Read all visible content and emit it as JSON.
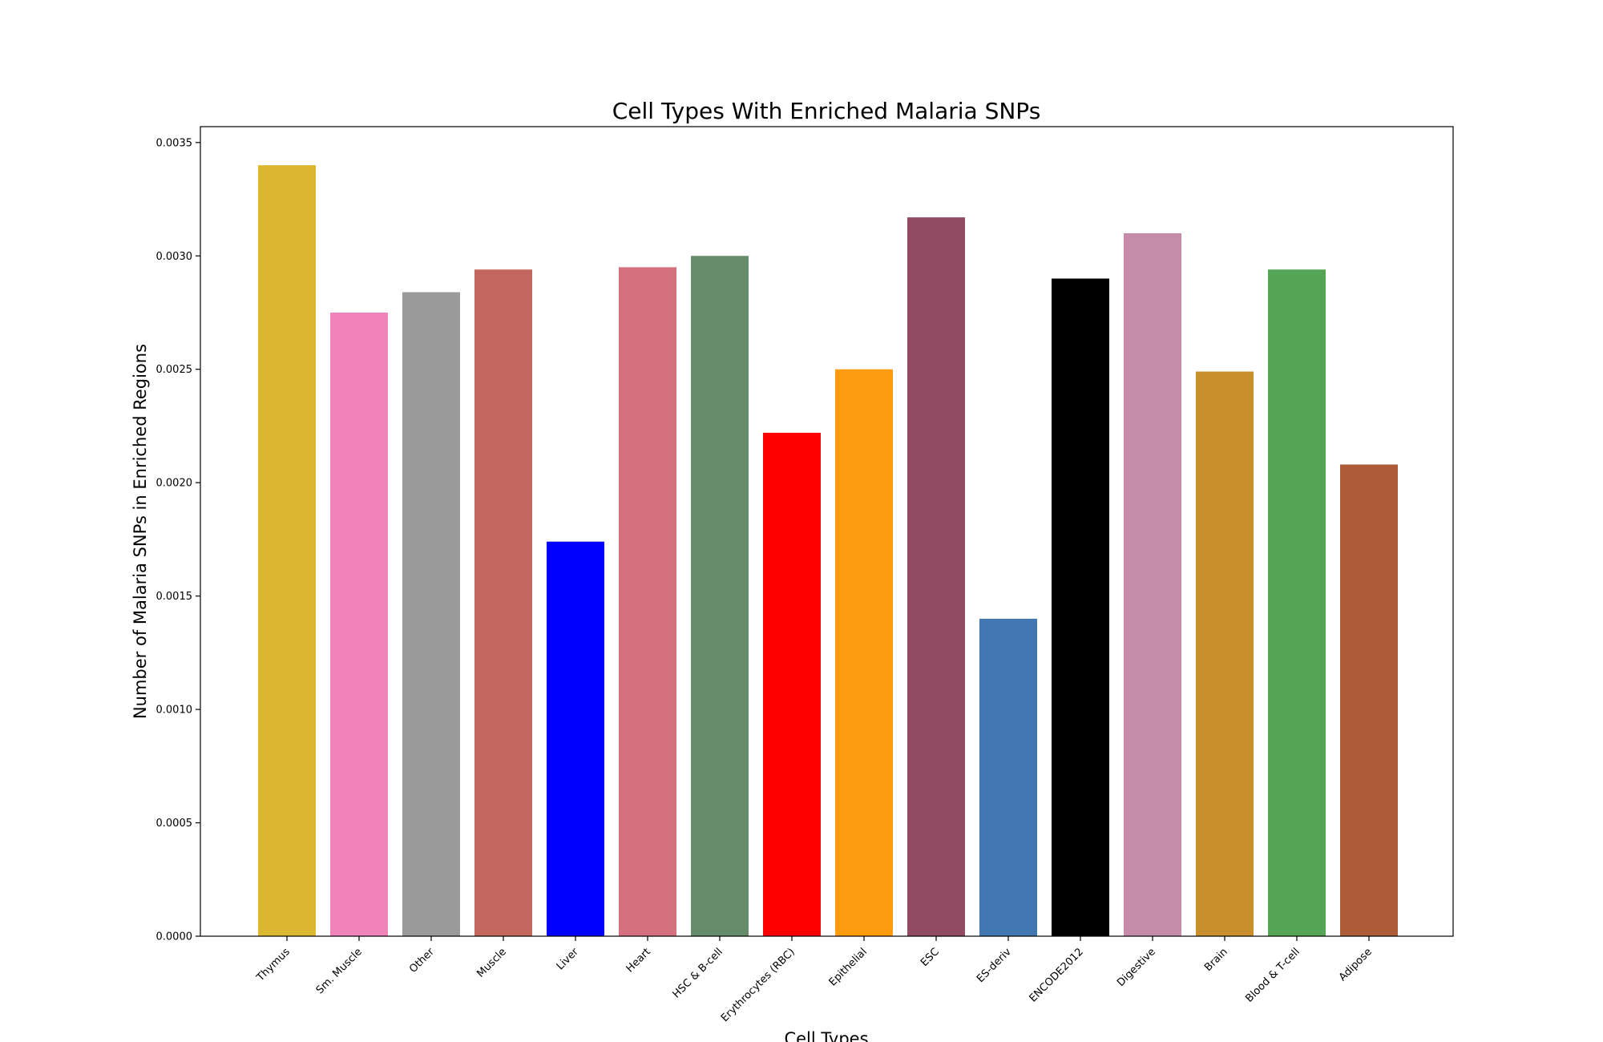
{
  "chart_data": {
    "type": "bar",
    "title": "Cell Types With Enriched Malaria SNPs",
    "xlabel": "Cell Types",
    "ylabel": "Number of Malaria SNPs in Enriched Regions",
    "ylim": [
      0,
      0.00357
    ],
    "yticks": [
      "0.0000",
      "0.0005",
      "0.0010",
      "0.0015",
      "0.0020",
      "0.0025",
      "0.0030",
      "0.0035"
    ],
    "grid": false,
    "categories": [
      "Thymus",
      "Sm. Muscle",
      "Other",
      "Muscle",
      "Liver",
      "Heart",
      "HSC & B-cell",
      "Erythrocytes (RBC)",
      "Epithelial",
      "ESC",
      "ES-deriv",
      "ENCODE2012",
      "Digestive",
      "Brain",
      "Blood & T-cell",
      "Adipose"
    ],
    "values": [
      0.0034,
      0.00275,
      0.00284,
      0.00294,
      0.00174,
      0.00295,
      0.003,
      0.00222,
      0.0025,
      0.00317,
      0.0014,
      0.0029,
      0.0031,
      0.00249,
      0.00294,
      0.00208
    ],
    "colors": [
      "#dbb830",
      "#f183bb",
      "#9a9a9a",
      "#c3665d",
      "#0000ff",
      "#d5707f",
      "#658b6a",
      "#ff0000",
      "#fe9c11",
      "#924a62",
      "#4278b1",
      "#000000",
      "#c68ba9",
      "#c7902d",
      "#55a556",
      "#ae5c38"
    ]
  }
}
